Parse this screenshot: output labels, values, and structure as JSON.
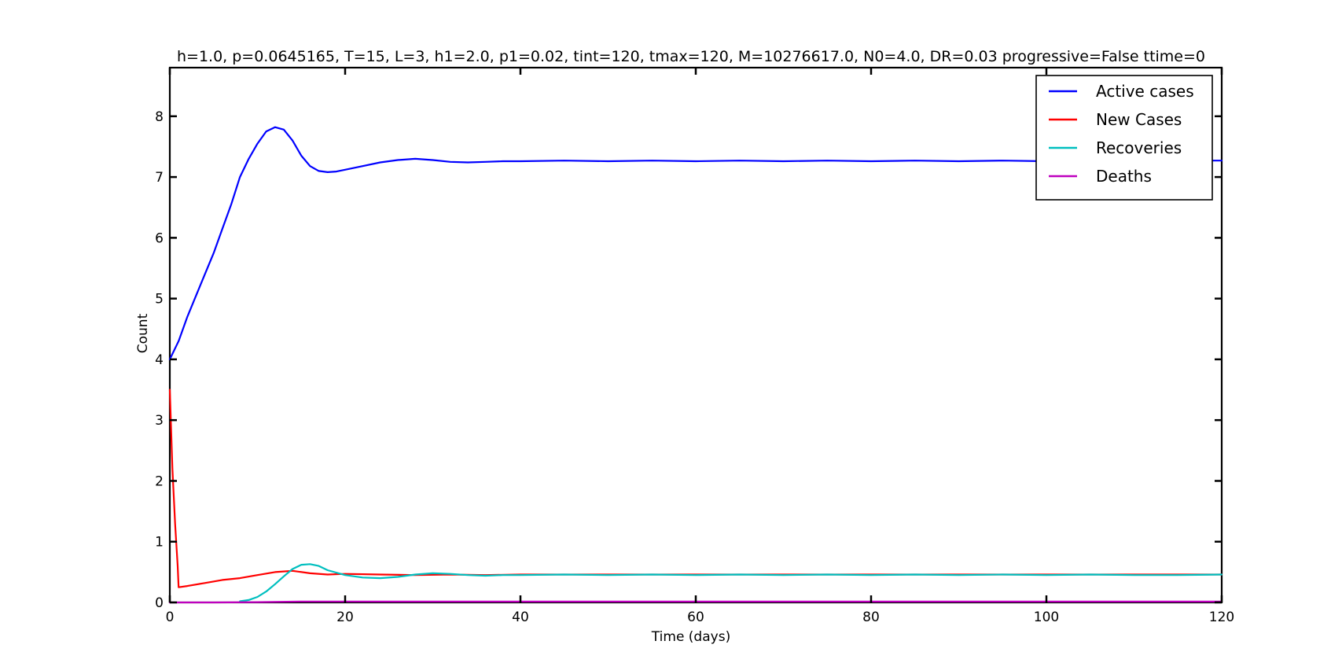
{
  "chart_data": {
    "type": "line",
    "title": "h=1.0, p=0.0645165, T=15, L=3, h1=2.0, p1=0.02, tint=120, tmax=120, M=10276617.0, N0=4.0, DR=0.03 progressive=False ttime=0",
    "xlabel": "Time (days)",
    "ylabel": "Count",
    "xlim": [
      0,
      120
    ],
    "ylim": [
      0,
      8.8
    ],
    "xticks": [
      0,
      20,
      40,
      60,
      80,
      100,
      120
    ],
    "yticks": [
      0,
      1,
      2,
      3,
      4,
      5,
      6,
      7,
      8
    ],
    "grid": false,
    "legend": "top-right",
    "series": [
      {
        "name": "Active cases",
        "color": "#0000ff",
        "x": [
          0,
          1,
          2,
          3,
          4,
          5,
          6,
          7,
          8,
          9,
          10,
          11,
          12,
          13,
          14,
          15,
          16,
          17,
          18,
          19,
          20,
          22,
          24,
          26,
          28,
          30,
          32,
          34,
          36,
          38,
          40,
          45,
          50,
          55,
          60,
          65,
          70,
          75,
          80,
          85,
          90,
          95,
          100,
          105,
          110,
          115,
          120
        ],
        "y": [
          4.0,
          4.3,
          4.7,
          5.05,
          5.4,
          5.75,
          6.15,
          6.55,
          7.0,
          7.3,
          7.55,
          7.75,
          7.82,
          7.78,
          7.6,
          7.35,
          7.18,
          7.1,
          7.08,
          7.09,
          7.12,
          7.18,
          7.24,
          7.28,
          7.3,
          7.28,
          7.25,
          7.24,
          7.25,
          7.26,
          7.26,
          7.27,
          7.26,
          7.27,
          7.26,
          7.27,
          7.26,
          7.27,
          7.26,
          7.27,
          7.26,
          7.27,
          7.26,
          7.27,
          7.26,
          7.27,
          7.27
        ]
      },
      {
        "name": "New Cases",
        "color": "#ff0000",
        "x": [
          0,
          0.3,
          0.6,
          0.9,
          1,
          2,
          4,
          6,
          8,
          10,
          12,
          14,
          16,
          18,
          20,
          24,
          28,
          32,
          36,
          40,
          50,
          60,
          70,
          80,
          90,
          100,
          110,
          120
        ],
        "y": [
          3.5,
          2.2,
          1.3,
          0.6,
          0.25,
          0.27,
          0.32,
          0.37,
          0.4,
          0.45,
          0.5,
          0.52,
          0.48,
          0.46,
          0.47,
          0.46,
          0.45,
          0.46,
          0.45,
          0.46,
          0.46,
          0.46,
          0.46,
          0.46,
          0.46,
          0.46,
          0.46,
          0.46
        ]
      },
      {
        "name": "Recoveries",
        "color": "#00bfbf",
        "x": [
          8,
          9,
          10,
          11,
          12,
          13,
          14,
          15,
          16,
          17,
          18,
          20,
          22,
          24,
          26,
          28,
          30,
          32,
          34,
          36,
          38,
          40,
          45,
          50,
          55,
          60,
          65,
          70,
          75,
          80,
          85,
          90,
          95,
          100,
          105,
          110,
          115,
          120
        ],
        "y": [
          0.02,
          0.04,
          0.09,
          0.18,
          0.3,
          0.43,
          0.55,
          0.62,
          0.63,
          0.6,
          0.53,
          0.45,
          0.41,
          0.4,
          0.42,
          0.46,
          0.48,
          0.47,
          0.45,
          0.44,
          0.45,
          0.45,
          0.46,
          0.45,
          0.46,
          0.45,
          0.46,
          0.45,
          0.46,
          0.45,
          0.46,
          0.45,
          0.46,
          0.45,
          0.46,
          0.45,
          0.45,
          0.46
        ]
      },
      {
        "name": "Deaths",
        "color": "#bf00bf",
        "x": [
          0,
          5,
          10,
          15,
          20,
          30,
          40,
          50,
          60,
          70,
          80,
          90,
          100,
          110,
          120
        ],
        "y": [
          0.0,
          0.0,
          0.005,
          0.015,
          0.015,
          0.014,
          0.014,
          0.014,
          0.014,
          0.014,
          0.014,
          0.014,
          0.014,
          0.014,
          0.014
        ]
      }
    ]
  }
}
